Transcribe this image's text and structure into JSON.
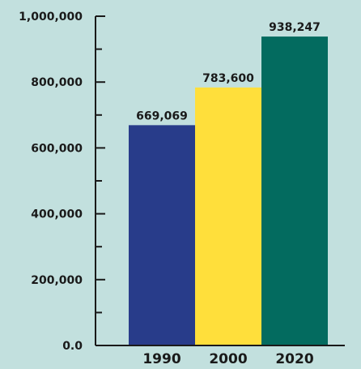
{
  "chart_data": {
    "type": "bar",
    "title": "",
    "xlabel": "",
    "ylabel": "",
    "categories": [
      "1990",
      "2000",
      "2020"
    ],
    "values": [
      669069,
      783600,
      938247
    ],
    "value_labels": [
      "669,069",
      "783,600",
      "938,247"
    ],
    "bar_colors": [
      "#283c8a",
      "#ffdf3b",
      "#036b5f"
    ],
    "ylim": [
      0,
      1000000
    ],
    "y_ticks": [
      0,
      200000,
      400000,
      600000,
      800000,
      1000000
    ],
    "y_tick_labels": [
      "0.0",
      "200,000",
      "400,000",
      "600,000",
      "800,000",
      "1,000,000"
    ],
    "minor_ticks_per_major": 1,
    "grid": false,
    "legend": "none",
    "background": "#c2e0de",
    "axis_color": "#1a1a1a"
  }
}
